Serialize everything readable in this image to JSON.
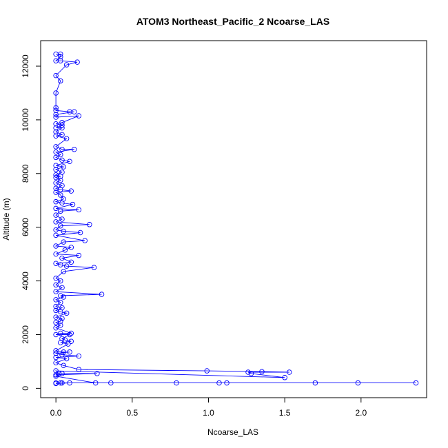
{
  "chart_data": {
    "type": "line",
    "title": "ATOM3 Northeast_Pacific_2 Ncoarse_LAS",
    "xlabel": "Ncoarse_LAS",
    "ylabel": "Altitude (m)",
    "xlim": [
      -0.1,
      2.43
    ],
    "ylim": [
      -350,
      12950
    ],
    "x_ticks": [
      0,
      0.5,
      1.0,
      1.5,
      2.0
    ],
    "x_tick_labels": [
      "0.0",
      "0.5",
      "1.0",
      "1.5",
      "2.0"
    ],
    "y_ticks": [
      0,
      2000,
      4000,
      6000,
      8000,
      10000,
      12000
    ],
    "y_tick_labels": [
      "0",
      "2000",
      "4000",
      "6000",
      "8000",
      "10000",
      "12000"
    ],
    "grid": false,
    "marker": "open-circle",
    "series_color": "#0000ff",
    "series": [
      {
        "points": [
          [
            0.0,
            12450
          ],
          [
            0.03,
            12450
          ],
          [
            0.03,
            12350
          ],
          [
            0.0,
            12200
          ],
          [
            0.03,
            12200
          ],
          [
            0.14,
            12150
          ],
          [
            0.07,
            12050
          ],
          [
            0.0,
            11650
          ],
          [
            0.03,
            11450
          ],
          [
            0.0,
            11000
          ],
          [
            0.0,
            10450
          ],
          [
            0.0,
            10350
          ],
          [
            0.09,
            10300
          ],
          [
            0.12,
            10300
          ],
          [
            0.0,
            10200
          ],
          [
            0.0,
            10100
          ],
          [
            0.15,
            10150
          ],
          [
            0.04,
            9900
          ],
          [
            0.0,
            9850
          ],
          [
            0.04,
            9800
          ],
          [
            0.0,
            9700
          ],
          [
            0.04,
            9700
          ],
          [
            0.0,
            9550
          ],
          [
            0.04,
            9450
          ],
          [
            0.0,
            9400
          ],
          [
            0.07,
            9300
          ],
          [
            0.0,
            9000
          ],
          [
            0.04,
            8900
          ],
          [
            0.12,
            8900
          ],
          [
            0.0,
            8800
          ],
          [
            0.03,
            8700
          ],
          [
            0.0,
            8600
          ],
          [
            0.04,
            8500
          ],
          [
            0.09,
            8450
          ],
          [
            0.0,
            8300
          ],
          [
            0.05,
            8250
          ],
          [
            0.0,
            8150
          ],
          [
            0.04,
            8050
          ],
          [
            0.0,
            7950
          ],
          [
            0.03,
            7900
          ],
          [
            0.0,
            7850
          ],
          [
            0.03,
            7750
          ],
          [
            0.0,
            7650
          ],
          [
            0.04,
            7550
          ],
          [
            0.0,
            7450
          ],
          [
            0.03,
            7400
          ],
          [
            0.1,
            7350
          ],
          [
            0.0,
            7300
          ],
          [
            0.03,
            7200
          ],
          [
            0.05,
            7050
          ],
          [
            0.0,
            6950
          ],
          [
            0.04,
            6900
          ],
          [
            0.11,
            6850
          ],
          [
            0.0,
            6700
          ],
          [
            0.15,
            6650
          ],
          [
            0.03,
            6600
          ],
          [
            0.0,
            6450
          ],
          [
            0.04,
            6300
          ],
          [
            0.0,
            6200
          ],
          [
            0.22,
            6100
          ],
          [
            0.03,
            6050
          ],
          [
            0.0,
            5900
          ],
          [
            0.05,
            5850
          ],
          [
            0.16,
            5800
          ],
          [
            0.0,
            5700
          ],
          [
            0.19,
            5500
          ],
          [
            0.05,
            5450
          ],
          [
            0.0,
            5300
          ],
          [
            0.1,
            5250
          ],
          [
            0.06,
            5150
          ],
          [
            0.0,
            5000
          ],
          [
            0.15,
            4950
          ],
          [
            0.04,
            4850
          ],
          [
            0.1,
            4700
          ],
          [
            0.0,
            4650
          ],
          [
            0.03,
            4600
          ],
          [
            0.07,
            4550
          ],
          [
            0.25,
            4500
          ],
          [
            0.05,
            4350
          ],
          [
            0.0,
            4100
          ],
          [
            0.03,
            4000
          ],
          [
            0.0,
            3850
          ],
          [
            0.04,
            3750
          ],
          [
            0.0,
            3600
          ],
          [
            0.3,
            3500
          ],
          [
            0.03,
            3450
          ],
          [
            0.05,
            3400
          ],
          [
            0.0,
            3300
          ],
          [
            0.03,
            3200
          ],
          [
            0.0,
            3050
          ],
          [
            0.04,
            3000
          ],
          [
            0.0,
            2900
          ],
          [
            0.03,
            2850
          ],
          [
            0.07,
            2800
          ],
          [
            0.0,
            2650
          ],
          [
            0.04,
            2600
          ],
          [
            0.03,
            2500
          ],
          [
            0.0,
            2450
          ],
          [
            0.03,
            2350
          ],
          [
            0.0,
            2250
          ],
          [
            0.1,
            2050
          ],
          [
            0.03,
            2050
          ],
          [
            0.0,
            2000
          ],
          [
            0.09,
            2000
          ],
          [
            0.04,
            1850
          ],
          [
            0.06,
            1800
          ],
          [
            0.1,
            1750
          ],
          [
            0.03,
            1700
          ],
          [
            0.08,
            1650
          ],
          [
            0.0,
            1400
          ],
          [
            0.05,
            1350
          ],
          [
            0.09,
            1350
          ],
          [
            0.0,
            1300
          ],
          [
            0.04,
            1250
          ],
          [
            0.15,
            1200
          ],
          [
            0.0,
            1150
          ],
          [
            0.07,
            1100
          ],
          [
            0.0,
            950
          ],
          [
            0.05,
            850
          ],
          [
            0.15,
            700
          ],
          [
            0.99,
            650
          ],
          [
            1.35,
            620
          ],
          [
            1.53,
            600
          ],
          [
            1.26,
            600
          ],
          [
            1.28,
            550
          ],
          [
            1.5,
            400
          ],
          [
            0.0,
            650
          ],
          [
            0.02,
            550
          ],
          [
            0.0,
            500
          ],
          [
            0.27,
            550
          ],
          [
            0.04,
            550
          ],
          [
            0.0,
            450
          ],
          [
            0.26,
            200
          ],
          [
            0.36,
            200
          ],
          [
            0.79,
            200
          ],
          [
            1.07,
            200
          ],
          [
            1.12,
            200
          ],
          [
            1.7,
            200
          ],
          [
            1.98,
            200
          ],
          [
            2.36,
            200
          ],
          [
            0.0,
            200
          ],
          [
            0.03,
            200
          ],
          [
            0.04,
            200
          ],
          [
            0.09,
            200
          ],
          [
            0.0,
            180
          ]
        ]
      }
    ]
  }
}
